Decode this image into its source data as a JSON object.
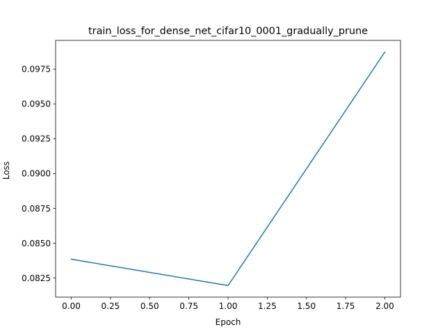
{
  "chart_data": {
    "type": "line",
    "title": "train_loss_for_dense_net_cifar10_0001_gradually_prune",
    "xlabel": "Epoch",
    "ylabel": "Loss",
    "x": [
      0,
      1,
      2
    ],
    "series": [
      {
        "values": [
          0.08385,
          0.08196,
          0.09872
        ]
      }
    ],
    "xlim": [
      -0.1,
      2.1
    ],
    "ylim": [
      0.08113,
      0.09956
    ],
    "xticks": [
      0.0,
      0.25,
      0.5,
      0.75,
      1.0,
      1.25,
      1.5,
      1.75,
      2.0
    ],
    "xtick_labels": [
      "0.00",
      "0.25",
      "0.50",
      "0.75",
      "1.00",
      "1.25",
      "1.50",
      "1.75",
      "2.00"
    ],
    "yticks": [
      0.0825,
      0.085,
      0.0875,
      0.09,
      0.0925,
      0.095,
      0.0975
    ],
    "ytick_labels": [
      "0.0825",
      "0.0850",
      "0.0875",
      "0.0900",
      "0.0925",
      "0.0950",
      "0.0975"
    ],
    "grid": false,
    "line_color": "#1f77b4"
  }
}
